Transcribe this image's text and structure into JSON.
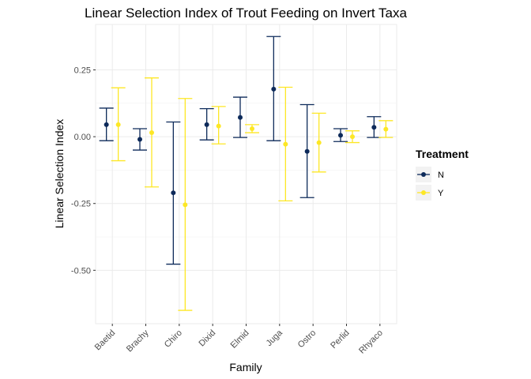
{
  "chart_data": {
    "type": "scatter",
    "title": "Linear Selection Index of Trout Feeding on Invert Taxa",
    "xlabel": "Family",
    "ylabel": "Linear Selection Index",
    "categories": [
      "Baetid",
      "Brachy",
      "Chiro",
      "Dixid",
      "Elmid",
      "Juga",
      "Ostro",
      "Perlid",
      "Rhyaco"
    ],
    "yticks": [
      0.25,
      0.0,
      -0.25,
      -0.5
    ],
    "ytick_labels": [
      "0.25",
      "0.00",
      "-0.25",
      "-0.50"
    ],
    "ylim": [
      -0.7,
      0.42
    ],
    "grid": true,
    "legend": {
      "title": "Treatment",
      "position": "right"
    },
    "series": [
      {
        "name": "N",
        "color": "#0d2a5a",
        "points": [
          {
            "y": 0.045,
            "low": -0.015,
            "high": 0.107
          },
          {
            "y": -0.01,
            "low": -0.05,
            "high": 0.03
          },
          {
            "y": -0.21,
            "low": -0.477,
            "high": 0.055
          },
          {
            "y": 0.045,
            "low": -0.012,
            "high": 0.105
          },
          {
            "y": 0.072,
            "low": -0.003,
            "high": 0.148
          },
          {
            "y": 0.178,
            "low": -0.015,
            "high": 0.375
          },
          {
            "y": -0.055,
            "low": -0.228,
            "high": 0.12
          },
          {
            "y": 0.005,
            "low": -0.018,
            "high": 0.03
          },
          {
            "y": 0.035,
            "low": -0.003,
            "high": 0.075
          }
        ]
      },
      {
        "name": "Y",
        "color": "#fde725",
        "points": [
          {
            "y": 0.045,
            "low": -0.09,
            "high": 0.183
          },
          {
            "y": 0.015,
            "low": -0.188,
            "high": 0.22
          },
          {
            "y": -0.255,
            "low": -0.65,
            "high": 0.143
          },
          {
            "y": 0.04,
            "low": -0.027,
            "high": 0.113
          },
          {
            "y": 0.03,
            "low": 0.015,
            "high": 0.045
          },
          {
            "y": -0.028,
            "low": -0.24,
            "high": 0.185
          },
          {
            "y": -0.022,
            "low": -0.132,
            "high": 0.088
          },
          {
            "y": 0.0,
            "low": -0.022,
            "high": 0.022
          },
          {
            "y": 0.028,
            "low": -0.003,
            "high": 0.06
          }
        ]
      }
    ]
  }
}
